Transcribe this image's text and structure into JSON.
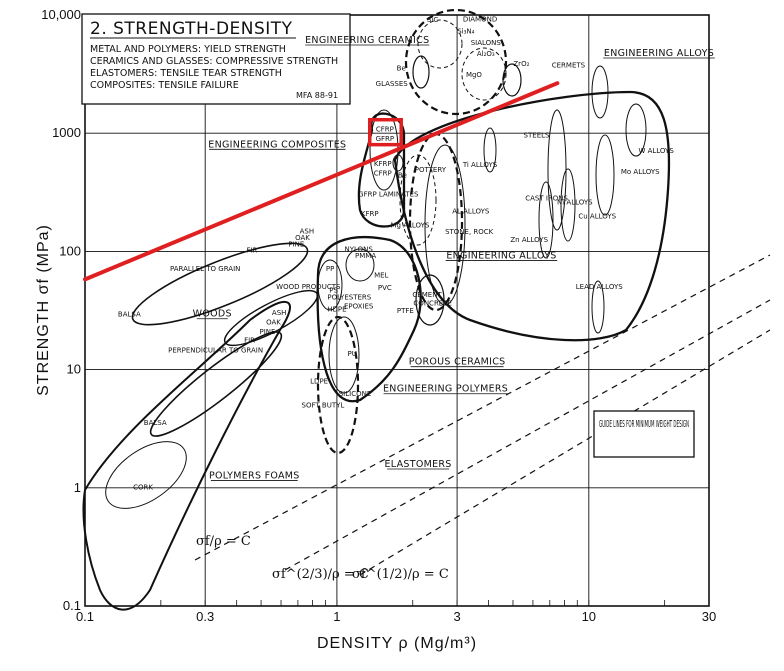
{
  "chart_data": {
    "type": "scatter",
    "title": "2. STRENGTH-DENSITY",
    "subtitle_lines": [
      "METAL AND POLYMERS: YIELD STRENGTH",
      "CERAMICS AND GLASSES: COMPRESSIVE STRENGTH",
      "ELASTOMERS: TENSILE TEAR STRENGTH",
      "COMPOSITES: TENSILE FAILURE"
    ],
    "reference": "MFA 88-91",
    "xlabel": "DENSITY ρ  (Mg/m³)",
    "ylabel": "STRENGTH σf  (MPa)",
    "x_scale": "log",
    "y_scale": "log",
    "xlim": [
      0.1,
      30
    ],
    "ylim": [
      0.1,
      10000
    ],
    "x_ticks": [
      0.1,
      0.3,
      1,
      3,
      10,
      30
    ],
    "x_tick_labels": [
      "0.1",
      "0.3",
      "1",
      "3",
      "10",
      "30"
    ],
    "y_ticks": [
      0.1,
      1,
      10,
      100,
      1000,
      10000
    ],
    "y_tick_labels": [
      "0.1",
      "1",
      "10",
      "100",
      "1000",
      "10,000"
    ],
    "grid": true,
    "material_groups": [
      {
        "label": "ENGINEERING CERAMICS",
        "x": 1.32,
        "y": 5800
      },
      {
        "label": "ENGINEERING ALLOYS",
        "x": 19,
        "y": 4500
      },
      {
        "label": "ENGINEERING COMPOSITES",
        "x": 0.58,
        "y": 760
      },
      {
        "label": "ENGINEERING ALLOYS",
        "x": 4.5,
        "y": 87
      },
      {
        "label": "WOODS",
        "x": 0.32,
        "y": 28
      },
      {
        "label": "POROUS CERAMICS",
        "x": 3.0,
        "y": 11
      },
      {
        "label": "ENGINEERING POLYMERS",
        "x": 2.7,
        "y": 6.5
      },
      {
        "label": "ELASTOMERS",
        "x": 2.1,
        "y": 1.5
      },
      {
        "label": "POLYMERS FOAMS",
        "x": 0.47,
        "y": 1.2
      }
    ],
    "materials": [
      {
        "label": "SiC",
        "x": 2.4,
        "y": 8700
      },
      {
        "label": "DIAMOND",
        "x": 3.7,
        "y": 8800
      },
      {
        "label": "Si₃N₄",
        "x": 3.25,
        "y": 7000
      },
      {
        "label": "SIALONS",
        "x": 3.9,
        "y": 5600
      },
      {
        "label": "Al₂O₃",
        "x": 3.9,
        "y": 4500
      },
      {
        "label": "ZrO₂",
        "x": 5.4,
        "y": 3700
      },
      {
        "label": "MgO",
        "x": 3.5,
        "y": 3000
      },
      {
        "label": "Be",
        "x": 1.8,
        "y": 3400
      },
      {
        "label": "GLASSES",
        "x": 1.65,
        "y": 2500
      },
      {
        "label": "CERMETS",
        "x": 8.3,
        "y": 3600
      },
      {
        "label": "CFRP",
        "x": 1.55,
        "y": 1030
      },
      {
        "label": "GFRP",
        "x": 1.55,
        "y": 860
      },
      {
        "label": "KFRP",
        "x": 1.52,
        "y": 530
      },
      {
        "label": "CFRP",
        "x": 1.52,
        "y": 440
      },
      {
        "label": "Be",
        "x": 1.82,
        "y": 420
      },
      {
        "label": "POTTERY",
        "x": 2.35,
        "y": 470
      },
      {
        "label": "Ti ALLOYS",
        "x": 3.7,
        "y": 520
      },
      {
        "label": "STEELS",
        "x": 6.2,
        "y": 920
      },
      {
        "label": "W ALLOYS",
        "x": 18.5,
        "y": 680
      },
      {
        "label": "Mo ALLOYS",
        "x": 16,
        "y": 450
      },
      {
        "label": "GFRP LAMINATES",
        "x": 1.6,
        "y": 290
      },
      {
        "label": "KFRP",
        "x": 1.35,
        "y": 200
      },
      {
        "label": "AL ALLOYS",
        "x": 3.4,
        "y": 210
      },
      {
        "label": "CAST IRONS",
        "x": 6.8,
        "y": 270
      },
      {
        "label": "Ni ALLOYS",
        "x": 8.8,
        "y": 250
      },
      {
        "label": "Cu ALLOYS",
        "x": 10.8,
        "y": 190
      },
      {
        "label": "Mg ALLOYS",
        "x": 1.95,
        "y": 160
      },
      {
        "label": "STONE, ROCK",
        "x": 3.35,
        "y": 140
      },
      {
        "label": "Zn ALLOYS",
        "x": 5.8,
        "y": 120
      },
      {
        "label": "NYLONS",
        "x": 1.22,
        "y": 100
      },
      {
        "label": "PMMA",
        "x": 1.3,
        "y": 88
      },
      {
        "label": "PP",
        "x": 0.94,
        "y": 68
      },
      {
        "label": "MEL",
        "x": 1.5,
        "y": 60
      },
      {
        "label": "PVC",
        "x": 1.55,
        "y": 47
      },
      {
        "label": "PS",
        "x": 0.97,
        "y": 45
      },
      {
        "label": "POLYESTERS",
        "x": 1.12,
        "y": 39
      },
      {
        "label": "EPOXIES",
        "x": 1.22,
        "y": 33
      },
      {
        "label": "CEMENT",
        "x": 2.28,
        "y": 41
      },
      {
        "label": "CONCRETE",
        "x": 2.4,
        "y": 35
      },
      {
        "label": "LEAD ALLOYS",
        "x": 11,
        "y": 48
      },
      {
        "label": "HDPE",
        "x": 1.0,
        "y": 31
      },
      {
        "label": "PTFE",
        "x": 1.87,
        "y": 30
      },
      {
        "label": "PU",
        "x": 1.15,
        "y": 13
      },
      {
        "label": "LDPE",
        "x": 0.85,
        "y": 7.6
      },
      {
        "label": "SILICONE",
        "x": 1.18,
        "y": 6.0
      },
      {
        "label": "SOFT BUTYL",
        "x": 0.88,
        "y": 4.8
      },
      {
        "label": "ASH",
        "x": 0.76,
        "y": 142
      },
      {
        "label": "OAK",
        "x": 0.73,
        "y": 125
      },
      {
        "label": "PINE",
        "x": 0.69,
        "y": 110
      },
      {
        "label": "FIR",
        "x": 0.46,
        "y": 98
      },
      {
        "label": "PARALLEL TO GRAIN",
        "x": 0.3,
        "y": 68
      },
      {
        "label": "BALSA",
        "x": 0.15,
        "y": 28
      },
      {
        "label": "WOOD PRODUCTS",
        "x": 0.77,
        "y": 48
      },
      {
        "label": "ASH",
        "x": 0.59,
        "y": 29
      },
      {
        "label": "OAK",
        "x": 0.56,
        "y": 24
      },
      {
        "label": "PINE",
        "x": 0.53,
        "y": 20
      },
      {
        "label": "FIR",
        "x": 0.45,
        "y": 17
      },
      {
        "label": "PERPENDICULAR TO GRAIN",
        "x": 0.33,
        "y": 14
      },
      {
        "label": "BALSA",
        "x": 0.19,
        "y": 3.4
      },
      {
        "label": "CORK",
        "x": 0.17,
        "y": 0.97
      }
    ],
    "guide_lines_label": "GUIDE LINES FOR MINIMUM WEIGHT DESIGN",
    "guide_equations": [
      "σf/ρ = C",
      "σf^(2/3)/ρ = C",
      "σf^(1/2)/ρ = C"
    ],
    "annotations": [
      {
        "type": "line",
        "color": "#e02020",
        "from": [
          0.1,
          58
        ],
        "to": [
          7.5,
          2650
        ]
      },
      {
        "type": "box",
        "color": "#e02020",
        "x": [
          1.35,
          1.8
        ],
        "y": [
          800,
          1300
        ]
      }
    ]
  }
}
